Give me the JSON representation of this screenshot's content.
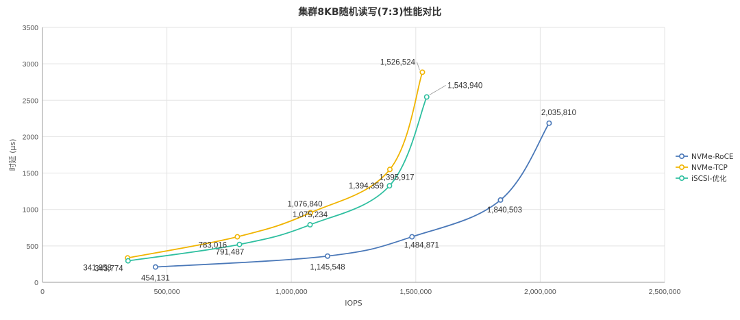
{
  "chart_data": {
    "type": "line",
    "title": "集群8KB随机读写(7:3)性能对比",
    "xlabel": "IOPS",
    "ylabel": "时延 (μs)",
    "xlim": [
      0,
      2500000
    ],
    "ylim": [
      0,
      3500
    ],
    "x_ticks": [
      0,
      500000,
      1000000,
      1500000,
      2000000,
      2500000
    ],
    "x_tick_labels": [
      "0",
      "500,000",
      "1,000,000",
      "1,500,000",
      "2,000,000",
      "2,500,000"
    ],
    "y_ticks": [
      0,
      500,
      1000,
      1500,
      2000,
      2500,
      3000,
      3500
    ],
    "y_tick_labels": [
      "0",
      "500",
      "1000",
      "1500",
      "2000",
      "2500",
      "3000",
      "3500"
    ],
    "grid": true,
    "legend_position": "right",
    "series": [
      {
        "name": "NVMe-RoCE",
        "color": "#4a78b8",
        "x": [
          454131,
          1145548,
          1484871,
          1840503,
          2035810
        ],
        "y": [
          210,
          360,
          625,
          1130,
          2185
        ],
        "labels": [
          "454,131",
          "1,145,548",
          "1,484,871",
          "1,840,503",
          "2,035,810"
        ]
      },
      {
        "name": "NVMe-TCP",
        "color": "#f0b400",
        "x": [
          341958,
          783016,
          1076840,
          1395917,
          1526524
        ],
        "y": [
          335,
          625,
          955,
          1550,
          2885
        ],
        "labels": [
          "341,958",
          "783,016",
          "1,076,840",
          "1,395,917",
          "1,526,524"
        ]
      },
      {
        "name": "iSCSI-优化",
        "color": "#2fbfa0",
        "x": [
          343774,
          791487,
          1075234,
          1394359,
          1543940
        ],
        "y": [
          295,
          520,
          790,
          1325,
          2545
        ],
        "labels": [
          "343,774",
          "791,487",
          "1,075,234",
          "1,394,359",
          "1,543,940"
        ]
      }
    ]
  }
}
